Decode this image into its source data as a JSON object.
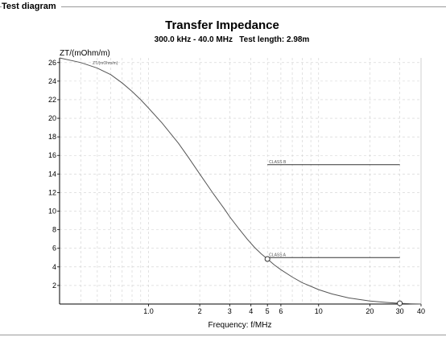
{
  "panel": {
    "title": "Test diagram"
  },
  "chart_data": {
    "type": "line",
    "title": "Transfer Impedance",
    "subtitle": "300.0 kHz - 40.0 MHz   Test length: 2.98m",
    "xlabel": "Frequency: f/MHz",
    "ylabel": "ZT/(mOhm/m)",
    "x_scale": "log",
    "xlim": [
      0.3,
      40
    ],
    "ylim": [
      0,
      26.5
    ],
    "x_ticks": [
      {
        "value": 1,
        "label": "1.0"
      },
      {
        "value": 2,
        "label": "2"
      },
      {
        "value": 3,
        "label": "3"
      },
      {
        "value": 4,
        "label": "4"
      },
      {
        "value": 5,
        "label": "5"
      },
      {
        "value": 6,
        "label": "6"
      },
      {
        "value": 10,
        "label": "10"
      },
      {
        "value": 20,
        "label": "20"
      },
      {
        "value": 30,
        "label": "30"
      },
      {
        "value": 40,
        "label": "40"
      }
    ],
    "y_ticks": [
      2,
      4,
      6,
      8,
      10,
      12,
      14,
      16,
      18,
      20,
      22,
      24,
      26
    ],
    "grid": true,
    "series": [
      {
        "name": "ZT/(mOhm/m)",
        "x": [
          0.3,
          0.4,
          0.5,
          0.6,
          0.7,
          0.8,
          0.9,
          1.0,
          1.2,
          1.5,
          1.7,
          2.0,
          2.4,
          2.8,
          3.0,
          3.4,
          3.8,
          4.2,
          4.6,
          5.0,
          5.5,
          6.0,
          7.0,
          8.0,
          10.0,
          12.0,
          15.0,
          20.0,
          25.0,
          30.0,
          35.0,
          40.0
        ],
        "y": [
          26.5,
          26.0,
          25.4,
          24.7,
          23.8,
          22.9,
          22.0,
          21.1,
          19.5,
          17.3,
          15.9,
          14.0,
          11.9,
          10.2,
          9.4,
          8.1,
          7.0,
          6.1,
          5.4,
          4.85,
          4.2,
          3.7,
          2.9,
          2.3,
          1.55,
          1.08,
          0.66,
          0.32,
          0.17,
          0.08,
          0.03,
          0.0
        ]
      }
    ],
    "limit_lines": [
      {
        "name": "CLASS B",
        "x_start": 5.0,
        "x_end": 30.0,
        "y": 15.0
      },
      {
        "name": "CLASS A",
        "x_start": 5.0,
        "x_end": 30.0,
        "y": 5.0
      }
    ],
    "markers": [
      {
        "x": 5.0,
        "y": 4.85
      },
      {
        "x": 30.0,
        "y": 0.08
      }
    ]
  }
}
